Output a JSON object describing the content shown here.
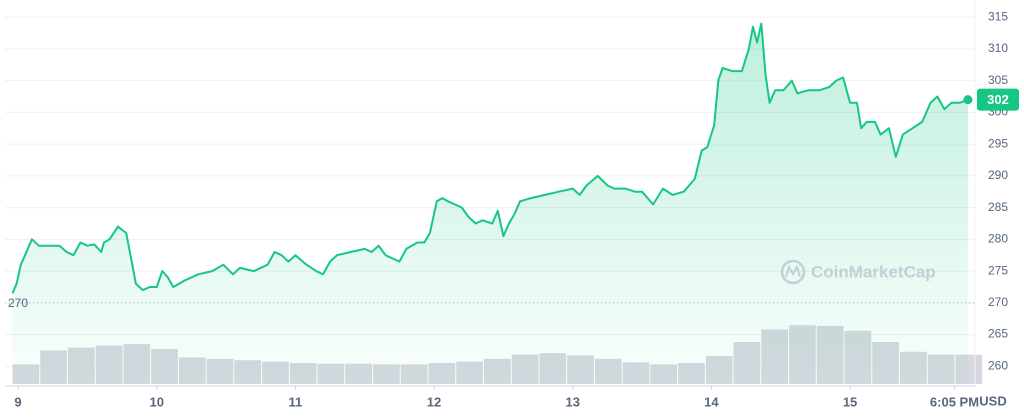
{
  "chart_data": {
    "type": "line",
    "series": [
      {
        "name": "Price",
        "color": "#16c784",
        "x": [
          8.96,
          8.99,
          9.02,
          9.06,
          9.1,
          9.15,
          9.2,
          9.3,
          9.35,
          9.4,
          9.45,
          9.5,
          9.55,
          9.6,
          9.62,
          9.66,
          9.72,
          9.78,
          9.82,
          9.85,
          9.9,
          9.95,
          10.0,
          10.04,
          10.08,
          10.12,
          10.2,
          10.3,
          10.4,
          10.48,
          10.55,
          10.6,
          10.7,
          10.8,
          10.85,
          10.9,
          10.95,
          11.0,
          11.08,
          11.15,
          11.2,
          11.25,
          11.3,
          11.4,
          11.5,
          11.55,
          11.6,
          11.65,
          11.7,
          11.75,
          11.8,
          11.88,
          11.93,
          11.97,
          12.02,
          12.06,
          12.1,
          12.15,
          12.2,
          12.25,
          12.3,
          12.35,
          12.42,
          12.46,
          12.5,
          12.54,
          12.58,
          12.62,
          12.7,
          12.8,
          12.9,
          13.0,
          13.05,
          13.1,
          13.18,
          13.25,
          13.3,
          13.38,
          13.45,
          13.5,
          13.58,
          13.65,
          13.72,
          13.8,
          13.88,
          13.93,
          13.97,
          14.02,
          14.05,
          14.08,
          14.15,
          14.22,
          14.27,
          14.3,
          14.33,
          14.36,
          14.39,
          14.42,
          14.46,
          14.52,
          14.58,
          14.62,
          14.7,
          14.78,
          14.85,
          14.9,
          14.95,
          15.0,
          15.05,
          15.08,
          15.12,
          15.18,
          15.22,
          15.28,
          15.33,
          15.38,
          15.45,
          15.52,
          15.58,
          15.63,
          15.68,
          15.73,
          15.79,
          15.85
        ],
        "values": [
          271.5,
          273,
          276,
          278,
          280,
          279,
          279,
          279,
          278,
          277.5,
          279.5,
          279,
          279.2,
          278,
          279.5,
          280,
          282,
          281,
          276.5,
          273,
          272,
          272.5,
          272.5,
          275,
          274,
          272.5,
          273.5,
          274.5,
          275,
          276,
          274.5,
          275.5,
          275,
          276,
          278,
          277.5,
          276.5,
          277.5,
          276,
          275,
          274.5,
          276.5,
          277.5,
          278,
          278.5,
          278,
          279,
          277.5,
          277,
          276.5,
          278.5,
          279.5,
          279.5,
          281,
          286,
          286.5,
          286,
          285.5,
          285,
          283.5,
          282.5,
          283,
          282.5,
          284.5,
          280.5,
          282.5,
          284,
          286,
          286.5,
          287,
          287.5,
          288,
          287,
          288.5,
          290,
          288.5,
          288,
          288,
          287.5,
          287.5,
          285.5,
          288,
          287,
          287.5,
          289.5,
          294,
          294.5,
          298,
          305,
          307,
          306.5,
          306.5,
          310,
          313.5,
          311,
          314,
          306,
          301.5,
          303.5,
          303.5,
          305,
          303,
          303.5,
          303.5,
          304,
          305,
          305.5,
          301.5,
          301.5,
          297.5,
          298.5,
          298.5,
          296.5,
          297.5,
          293,
          296.5,
          297.5,
          298.5,
          301.5,
          302.5,
          300.5,
          301.5,
          301.5,
          302
        ]
      },
      {
        "name": "Volume",
        "color": "#d5d9df",
        "axis": "y2",
        "x": [
          8.96,
          9.16,
          9.36,
          9.56,
          9.76,
          9.96,
          10.16,
          10.36,
          10.56,
          10.76,
          10.96,
          11.16,
          11.36,
          11.56,
          11.76,
          11.96,
          12.16,
          12.36,
          12.56,
          12.76,
          12.96,
          13.16,
          13.36,
          13.56,
          13.76,
          13.96,
          14.16,
          14.36,
          14.56,
          14.76,
          14.96,
          15.16,
          15.36,
          15.56,
          15.76
        ],
        "values": [
          28,
          48,
          52,
          55,
          57,
          50,
          38,
          36,
          34,
          32,
          30,
          29,
          29,
          28,
          28,
          30,
          32,
          36,
          42,
          44,
          41,
          36,
          31,
          28,
          30,
          40,
          60,
          78,
          84,
          83,
          76,
          60,
          46,
          42,
          42
        ]
      }
    ],
    "xlim": [
      8.906,
      15.901
    ],
    "xticks": [
      9,
      10,
      11,
      12,
      13,
      14,
      15,
      {
        "value": 15.753,
        "label": "6:05 PM"
      }
    ],
    "ylim": [
      256.9,
      317.7
    ],
    "yticks": [
      260,
      265,
      270,
      275,
      280,
      285,
      290,
      295,
      300,
      305,
      310,
      315
    ],
    "y2lim": [
      0,
      100
    ],
    "grid": true,
    "baseline": 270,
    "current_price": 302,
    "currency": "USD",
    "watermark": "CoinMarketCap"
  }
}
